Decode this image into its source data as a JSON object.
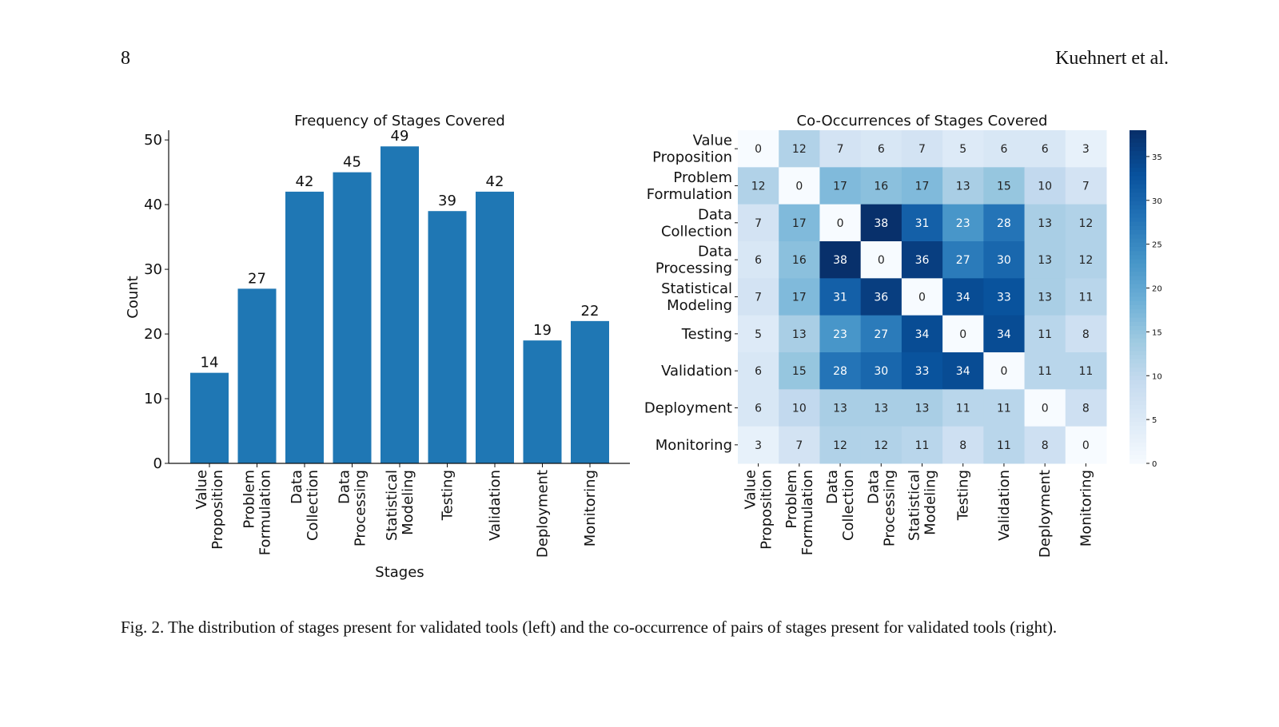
{
  "header": {
    "page_number": "8",
    "authors": "Kuehnert et al."
  },
  "caption": "Fig. 2.  The distribution of stages present for validated tools (left) and the co-occurrence of pairs of stages present for validated tools (right).",
  "chart_data": [
    {
      "type": "bar",
      "title": "Frequency of Stages Covered",
      "xlabel": "Stages",
      "ylabel": "Count",
      "categories": [
        [
          "Value",
          "Proposition"
        ],
        [
          "Problem",
          "Formulation"
        ],
        [
          "Data",
          "Collection"
        ],
        [
          "Data",
          "Processing"
        ],
        [
          "Statistical",
          "Modeling"
        ],
        [
          "Testing"
        ],
        [
          "Validation"
        ],
        [
          "Deployment"
        ],
        [
          "Monitoring"
        ]
      ],
      "values": [
        14,
        27,
        42,
        45,
        49,
        39,
        42,
        19,
        22
      ],
      "yticks": [
        0,
        10,
        20,
        30,
        40,
        50
      ],
      "ylim": [
        0,
        51.5
      ],
      "color": "#1f77b4"
    },
    {
      "type": "heatmap",
      "title": "Co-Occurrences of Stages Covered",
      "labels": [
        [
          "Value",
          "Proposition"
        ],
        [
          "Problem",
          "Formulation"
        ],
        [
          "Data",
          "Collection"
        ],
        [
          "Data",
          "Processing"
        ],
        [
          "Statistical",
          "Modeling"
        ],
        [
          "Testing"
        ],
        [
          "Validation"
        ],
        [
          "Deployment"
        ],
        [
          "Monitoring"
        ]
      ],
      "matrix": [
        [
          0,
          12,
          7,
          6,
          7,
          5,
          6,
          6,
          3
        ],
        [
          12,
          0,
          17,
          16,
          17,
          13,
          15,
          10,
          7
        ],
        [
          7,
          17,
          0,
          38,
          31,
          23,
          28,
          13,
          12
        ],
        [
          6,
          16,
          38,
          0,
          36,
          27,
          30,
          13,
          12
        ],
        [
          7,
          17,
          31,
          36,
          0,
          34,
          33,
          13,
          11
        ],
        [
          5,
          13,
          23,
          27,
          34,
          0,
          34,
          11,
          8
        ],
        [
          6,
          15,
          28,
          30,
          33,
          34,
          0,
          11,
          11
        ],
        [
          6,
          10,
          13,
          13,
          13,
          11,
          11,
          0,
          8
        ],
        [
          3,
          7,
          12,
          12,
          11,
          8,
          11,
          8,
          0
        ]
      ],
      "colormap": "Blues",
      "vmin": 0,
      "vmax": 38,
      "colorbar_ticks": [
        0,
        5,
        10,
        15,
        20,
        25,
        30,
        35
      ]
    }
  ]
}
